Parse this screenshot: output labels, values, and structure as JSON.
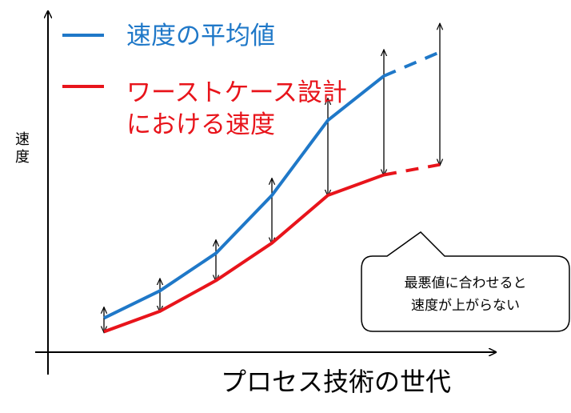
{
  "chart_data": {
    "type": "line",
    "title": "",
    "xlabel": "プロセス技術の世代",
    "ylabel": "速度",
    "x": [
      1,
      2,
      3,
      4,
      5,
      6,
      7
    ],
    "xlim": [
      0,
      8
    ],
    "ylim": [
      0,
      10
    ],
    "legend_position": "top-left",
    "grid": false,
    "series": [
      {
        "name": "速度の平均値",
        "color": "#1F78C8",
        "values": [
          1.0,
          1.8,
          2.9,
          4.6,
          6.8,
          8.1,
          8.8
        ],
        "dashed_last_segment": true
      },
      {
        "name": "ワーストケース設計における速度",
        "color": "#E8141B",
        "values": [
          0.6,
          1.2,
          2.1,
          3.2,
          4.6,
          5.2,
          5.5
        ],
        "dashed_last_segment": true
      }
    ],
    "annotations": [
      {
        "type": "range-arrows",
        "color": "#000000"
      },
      {
        "type": "callout",
        "text_line1": "最悪値に合わせると",
        "text_line2": "速度が上がらない"
      }
    ]
  }
}
